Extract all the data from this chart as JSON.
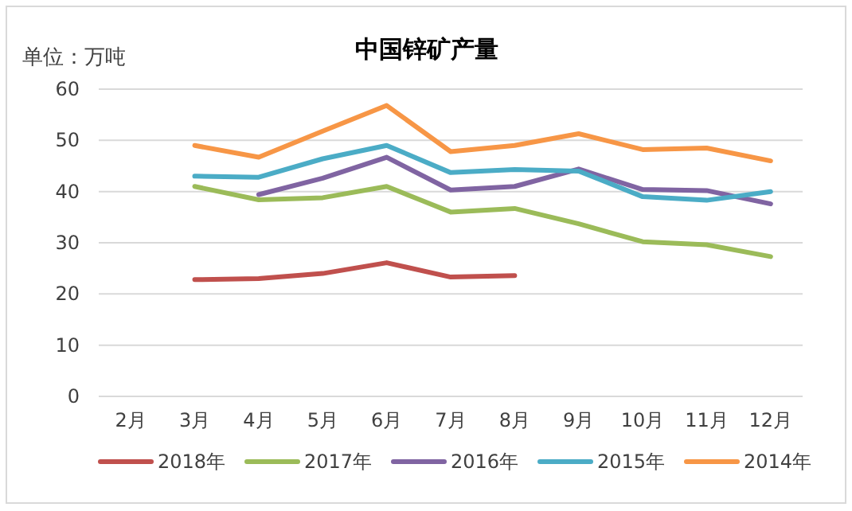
{
  "chart_data": {
    "type": "line",
    "title": "中国锌矿产量",
    "ylabel": "单位：万吨",
    "categories": [
      "2月",
      "3月",
      "4月",
      "5月",
      "6月",
      "7月",
      "8月",
      "9月",
      "10月",
      "11月",
      "12月"
    ],
    "series": [
      {
        "name": "2018年",
        "color": "#c0504d",
        "values": [
          null,
          22.8,
          23,
          24,
          26.1,
          23.3,
          23.6,
          null,
          null,
          null,
          null
        ]
      },
      {
        "name": "2017年",
        "color": "#9bbb59",
        "values": [
          null,
          41,
          38.4,
          38.8,
          41,
          36,
          36.7,
          33.7,
          30.2,
          29.6,
          27.3
        ]
      },
      {
        "name": "2016年",
        "color": "#8064a2",
        "values": [
          null,
          null,
          39.4,
          42.6,
          46.7,
          40.3,
          41,
          44.4,
          40.4,
          40.2,
          37.6
        ]
      },
      {
        "name": "2015年",
        "color": "#4bacc6",
        "values": [
          null,
          43,
          42.8,
          46.4,
          49,
          43.7,
          44.3,
          44,
          39,
          38.3,
          40
        ]
      },
      {
        "name": "2014年",
        "color": "#f79646",
        "values": [
          null,
          49,
          46.7,
          51.8,
          56.8,
          47.8,
          49,
          51.3,
          48.2,
          48.5,
          46
        ]
      }
    ],
    "ylim": [
      0,
      60
    ],
    "yticks": [
      0,
      10,
      20,
      30,
      40,
      50,
      60
    ],
    "grid": "y",
    "legend": "bottom",
    "marker": "none",
    "line_style": "solid"
  }
}
